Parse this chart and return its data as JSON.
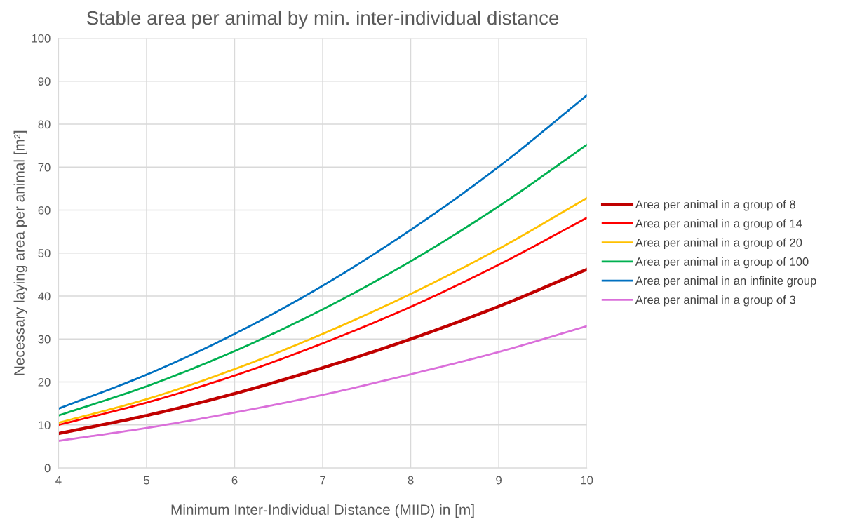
{
  "chart_data": {
    "type": "line",
    "title": "Stable area per animal by min. inter-individual distance",
    "xlabel": "Minimum Inter-Individual Distance (MIID) in [m]",
    "ylabel": "Necessary laying area per animal [m²]",
    "x": [
      4,
      5,
      6,
      7,
      8,
      9,
      10
    ],
    "series": [
      {
        "name": "Area per animal in a group of 8",
        "color": "#c00000",
        "values": [
          8.0,
          12.2,
          17.3,
          23.3,
          30.0,
          37.6,
          46.2
        ]
      },
      {
        "name": "Area per animal in a group of 14",
        "color": "#ff0000",
        "values": [
          10.0,
          15.2,
          21.5,
          29.0,
          37.5,
          47.3,
          58.2
        ]
      },
      {
        "name": "Area per animal in a group of 20",
        "color": "#ffc000",
        "values": [
          10.5,
          16.0,
          23.0,
          31.2,
          40.5,
          51.0,
          62.8
        ]
      },
      {
        "name": "Area per animal in a group of 100",
        "color": "#00b050",
        "values": [
          12.2,
          19.0,
          27.2,
          36.9,
          48.1,
          60.9,
          75.2
        ]
      },
      {
        "name": "Area per animal in an infinite group",
        "color": "#0070c0",
        "values": [
          13.8,
          21.7,
          31.2,
          42.4,
          55.4,
          70.1,
          86.7
        ]
      },
      {
        "name": "Area per animal in a group of 3",
        "color": "#da6fda",
        "values": [
          6.3,
          9.3,
          12.9,
          17.0,
          21.8,
          27.0,
          33.0
        ]
      }
    ],
    "xlim": [
      4,
      10
    ],
    "xticks": [
      4,
      5,
      6,
      7,
      8,
      9,
      10
    ],
    "ylim": [
      0,
      100
    ],
    "yticks": [
      0,
      10,
      20,
      30,
      40,
      50,
      60,
      70,
      80,
      90,
      100
    ],
    "grid": true,
    "legend": "right",
    "marker": "none",
    "line_style": "solid"
  }
}
